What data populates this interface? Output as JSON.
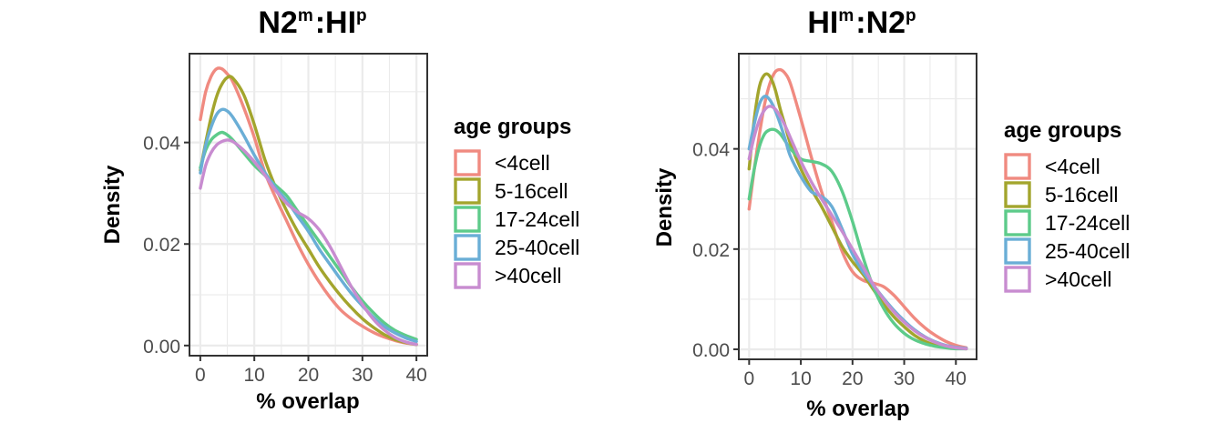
{
  "chart_data": [
    {
      "type": "line",
      "title": {
        "main": "N2",
        "sup1": "m",
        "mid": ":HI",
        "sup2": "p"
      },
      "xlabel": "% overlap",
      "ylabel": "Density",
      "xlim": [
        -2,
        42
      ],
      "ylim": [
        -0.002,
        0.0575
      ],
      "xticks": [
        0,
        10,
        20,
        30,
        40
      ],
      "yticks": [
        0.0,
        0.02,
        0.04
      ],
      "ytick_labels": [
        "0.00",
        "0.02",
        "0.04"
      ],
      "xtick_labels": [
        "0",
        "10",
        "20",
        "30",
        "40"
      ],
      "grid": true,
      "legend": {
        "title": "age groups",
        "position": "right"
      },
      "series": [
        {
          "name": "<4cell",
          "color": "#F08A80",
          "x": [
            0,
            1,
            2,
            3,
            4,
            5,
            6,
            8,
            10,
            12,
            14,
            16,
            18,
            20,
            22,
            24,
            26,
            28,
            30,
            32,
            34,
            36,
            38,
            40
          ],
          "y": [
            0.0445,
            0.05,
            0.053,
            0.0545,
            0.0545,
            0.0535,
            0.052,
            0.047,
            0.041,
            0.034,
            0.029,
            0.0245,
            0.02,
            0.016,
            0.0125,
            0.0095,
            0.007,
            0.0052,
            0.0038,
            0.0026,
            0.0017,
            0.001,
            0.0005,
            0.0002
          ]
        },
        {
          "name": "5-16cell",
          "color": "#A3A52D",
          "x": [
            0,
            1,
            2,
            3,
            4,
            5,
            6,
            8,
            10,
            12,
            14,
            16,
            18,
            20,
            22,
            24,
            26,
            28,
            30,
            32,
            34,
            36,
            38,
            40
          ],
          "y": [
            0.0345,
            0.04,
            0.045,
            0.049,
            0.0515,
            0.0528,
            0.0527,
            0.0495,
            0.0435,
            0.0365,
            0.031,
            0.0265,
            0.0225,
            0.019,
            0.0155,
            0.0125,
            0.0098,
            0.0074,
            0.0053,
            0.0036,
            0.0022,
            0.0012,
            0.0006,
            0.0002
          ]
        },
        {
          "name": "17-24cell",
          "color": "#5DCB8A",
          "x": [
            0,
            1,
            2,
            3,
            4,
            5,
            6,
            8,
            10,
            12,
            14,
            16,
            18,
            20,
            22,
            24,
            26,
            28,
            30,
            32,
            34,
            36,
            38,
            40
          ],
          "y": [
            0.035,
            0.0385,
            0.0405,
            0.0415,
            0.042,
            0.0415,
            0.0405,
            0.038,
            0.0355,
            0.0335,
            0.0315,
            0.0295,
            0.0265,
            0.0235,
            0.0205,
            0.0175,
            0.0145,
            0.0115,
            0.0088,
            0.0065,
            0.0045,
            0.003,
            0.002,
            0.0012
          ]
        },
        {
          "name": "25-40cell",
          "color": "#6AAED6",
          "x": [
            0,
            1,
            2,
            3,
            4,
            5,
            6,
            8,
            10,
            12,
            14,
            16,
            18,
            20,
            22,
            24,
            26,
            28,
            30,
            32,
            34,
            36,
            38,
            40
          ],
          "y": [
            0.034,
            0.0395,
            0.043,
            0.0455,
            0.0465,
            0.0462,
            0.045,
            0.0415,
            0.0375,
            0.034,
            0.031,
            0.0285,
            0.0255,
            0.0225,
            0.019,
            0.016,
            0.013,
            0.0102,
            0.0078,
            0.0056,
            0.0038,
            0.0025,
            0.0015,
            0.0008
          ]
        },
        {
          "name": ">40cell",
          "color": "#C88CD0",
          "x": [
            0,
            1,
            2,
            3,
            4,
            5,
            6,
            8,
            10,
            12,
            14,
            16,
            18,
            20,
            22,
            24,
            26,
            28,
            30,
            32,
            34,
            36,
            38,
            40
          ],
          "y": [
            0.031,
            0.0355,
            0.038,
            0.0395,
            0.0402,
            0.0405,
            0.0402,
            0.0385,
            0.0362,
            0.0335,
            0.0305,
            0.028,
            0.0263,
            0.025,
            0.0228,
            0.0195,
            0.0155,
            0.0115,
            0.0081,
            0.0052,
            0.0031,
            0.0016,
            0.0007,
            0.0002
          ]
        }
      ]
    },
    {
      "type": "line",
      "title": {
        "main": "HI",
        "sup1": "m",
        "mid": ":N2",
        "sup2": "p"
      },
      "xlabel": "% overlap",
      "ylabel": "Density",
      "xlim": [
        -2,
        44
      ],
      "ylim": [
        -0.002,
        0.059
      ],
      "xticks": [
        0,
        10,
        20,
        30,
        40
      ],
      "yticks": [
        0.0,
        0.02,
        0.04
      ],
      "ytick_labels": [
        "0.00",
        "0.02",
        "0.04"
      ],
      "xtick_labels": [
        "0",
        "10",
        "20",
        "30",
        "40"
      ],
      "grid": true,
      "legend": {
        "title": "age groups",
        "position": "right"
      },
      "series": [
        {
          "name": "<4cell",
          "color": "#F08A80",
          "x": [
            0,
            1,
            2,
            3,
            4,
            5,
            6,
            7,
            8,
            10,
            12,
            14,
            16,
            18,
            20,
            22,
            24,
            26,
            28,
            30,
            32,
            34,
            36,
            38,
            40,
            42
          ],
          "y": [
            0.028,
            0.036,
            0.043,
            0.049,
            0.053,
            0.0553,
            0.0558,
            0.055,
            0.053,
            0.046,
            0.0385,
            0.0315,
            0.0255,
            0.0195,
            0.0155,
            0.0138,
            0.0132,
            0.0125,
            0.0108,
            0.0085,
            0.0062,
            0.0043,
            0.0028,
            0.0016,
            0.0008,
            0.0003
          ]
        },
        {
          "name": "5-16cell",
          "color": "#A3A52D",
          "x": [
            0,
            1,
            2,
            3,
            4,
            5,
            6,
            7,
            8,
            10,
            12,
            14,
            16,
            18,
            20,
            22,
            24,
            26,
            28,
            30,
            32,
            34,
            36,
            38,
            40,
            42
          ],
          "y": [
            0.036,
            0.046,
            0.0525,
            0.0548,
            0.0545,
            0.052,
            0.048,
            0.0445,
            0.041,
            0.036,
            0.032,
            0.0285,
            0.0245,
            0.0205,
            0.0175,
            0.015,
            0.012,
            0.009,
            0.0065,
            0.0045,
            0.0028,
            0.0016,
            0.0008,
            0.0004,
            0.0002,
            0.0001
          ]
        },
        {
          "name": "17-24cell",
          "color": "#5DCB8A",
          "x": [
            0,
            1,
            2,
            3,
            4,
            5,
            6,
            7,
            8,
            10,
            12,
            14,
            16,
            18,
            20,
            22,
            24,
            26,
            28,
            30,
            32,
            34,
            36,
            38,
            40,
            42
          ],
          "y": [
            0.03,
            0.036,
            0.0405,
            0.043,
            0.0438,
            0.0438,
            0.043,
            0.0415,
            0.04,
            0.038,
            0.0375,
            0.037,
            0.0355,
            0.0315,
            0.0255,
            0.0185,
            0.0125,
            0.0082,
            0.0052,
            0.0032,
            0.0019,
            0.0011,
            0.0006,
            0.0003,
            0.0001,
            0.0001
          ]
        },
        {
          "name": "25-40cell",
          "color": "#6AAED6",
          "x": [
            0,
            1,
            2,
            3,
            4,
            5,
            6,
            7,
            8,
            10,
            12,
            14,
            16,
            18,
            20,
            22,
            24,
            26,
            28,
            30,
            32,
            34,
            36,
            38,
            40,
            42
          ],
          "y": [
            0.04,
            0.045,
            0.049,
            0.0505,
            0.0498,
            0.0478,
            0.045,
            0.0418,
            0.0385,
            0.0345,
            0.0315,
            0.0305,
            0.0285,
            0.024,
            0.019,
            0.0155,
            0.0128,
            0.0102,
            0.0078,
            0.0057,
            0.0039,
            0.0025,
            0.0015,
            0.0008,
            0.0004,
            0.0002
          ]
        },
        {
          "name": ">40cell",
          "color": "#C88CD0",
          "x": [
            0,
            1,
            2,
            3,
            4,
            5,
            6,
            7,
            8,
            10,
            12,
            14,
            16,
            18,
            20,
            22,
            24,
            26,
            28,
            30,
            32,
            34,
            36,
            38,
            40,
            42
          ],
          "y": [
            0.038,
            0.0425,
            0.0458,
            0.0478,
            0.0485,
            0.048,
            0.0465,
            0.0445,
            0.0422,
            0.0375,
            0.0335,
            0.03,
            0.0268,
            0.0235,
            0.02,
            0.0165,
            0.013,
            0.01,
            0.0075,
            0.0054,
            0.0037,
            0.0024,
            0.0014,
            0.0007,
            0.0003,
            0.0001
          ]
        }
      ]
    }
  ]
}
